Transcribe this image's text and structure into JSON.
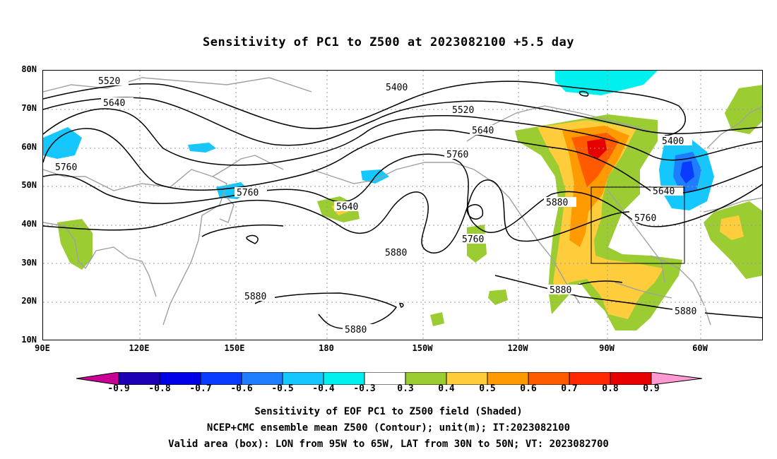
{
  "title": "Sensitivity of PC1 to Z500 at 2023082100 +5.5 day",
  "lat_labels": [
    "80N",
    "70N",
    "60N",
    "50N",
    "40N",
    "30N",
    "20N",
    "10N"
  ],
  "lon_labels": [
    "90E",
    "120E",
    "150E",
    "180",
    "150W",
    "120W",
    "90W",
    "60W"
  ],
  "contour_labels": [
    "5520",
    "5640",
    "5760",
    "5400",
    "5520",
    "5640",
    "5760",
    "5640",
    "5880",
    "5760",
    "5880",
    "5760",
    "5640",
    "5400",
    "5880",
    "5880",
    "5880",
    "5880",
    "5760"
  ],
  "colorbar": {
    "labels": [
      "-0.9",
      "-0.8",
      "-0.7",
      "-0.6",
      "-0.5",
      "-0.4",
      "-0.3",
      "0.3",
      "0.4",
      "0.5",
      "0.6",
      "0.7",
      "0.8",
      "0.9"
    ],
    "colors": [
      "#1e00b4",
      "#0000e6",
      "#0a3cff",
      "#1e7eff",
      "#14c8ff",
      "#00f0f0",
      "#ffffff",
      "#9bcd32",
      "#ffcd3c",
      "#ff9b00",
      "#ff5a00",
      "#ff2800",
      "#e60000"
    ],
    "low_end_color": "#c80096",
    "high_end_color": "#ff9bd2"
  },
  "captions": [
    "Sensitivity of EOF PC1 to Z500 field (Shaded)",
    "NCEP+CMC ensemble mean Z500 (Contour); unit(m); IT:2023082100",
    "Valid area (box): LON from 95W to 65W, LAT from 30N to 50N; VT: 2023082700"
  ]
}
